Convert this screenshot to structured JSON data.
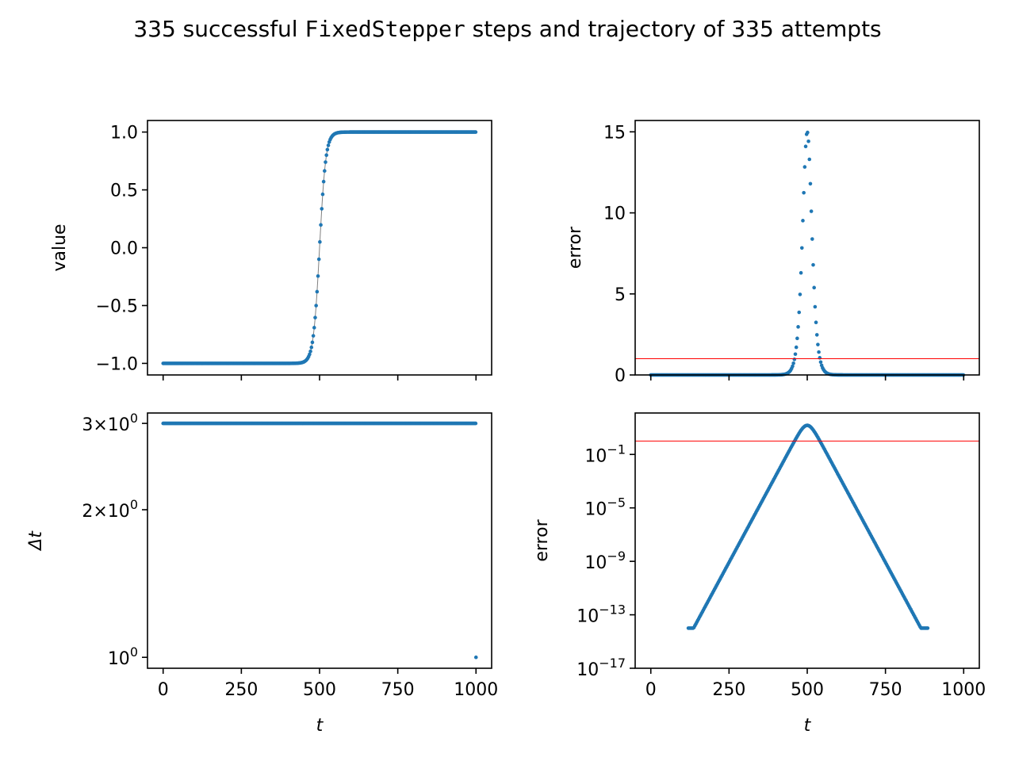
{
  "title": {
    "part1": "335 successful ",
    "part2": "FixedStepper",
    "part3": " steps and trajectory of 335 attempts"
  },
  "colors": {
    "series": "#1f77b4",
    "threshold": "#ff0000",
    "line": "#808080"
  },
  "chart_data": [
    {
      "id": "value",
      "type": "line",
      "xlim": [
        -50,
        1050
      ],
      "ylim": [
        -1.1,
        1.1
      ],
      "ylabel": "value",
      "xlabel": "",
      "yticks": [
        -1.0,
        -0.5,
        0.0,
        0.5,
        1.0
      ],
      "ytick_labels": [
        "−1.0",
        "−0.5",
        "0.0",
        "0.5",
        "1.0"
      ],
      "xticks": [
        0,
        250,
        500,
        750,
        1000
      ],
      "xtick_labels": [],
      "series": [
        {
          "formula": "tanh((t-500)/20)",
          "t_start": 0,
          "t_step": 3,
          "t_end": 1000
        }
      ]
    },
    {
      "id": "error-linear",
      "type": "scatter",
      "xlim": [
        -50,
        1050
      ],
      "ylim": [
        0,
        15.7
      ],
      "ylabel": "error",
      "xlabel": "",
      "yticks": [
        0,
        5,
        10,
        15
      ],
      "ytick_labels": [
        "0",
        "5",
        "10",
        "15"
      ],
      "xticks": [
        0,
        250,
        500,
        750,
        1000
      ],
      "xtick_labels": [],
      "threshold": 1,
      "series": [
        {
          "formula": "15*sech2((t-500)/20)",
          "t_start": 0,
          "t_step": 3,
          "t_end": 1000
        }
      ]
    },
    {
      "id": "dt",
      "type": "scatter",
      "scale": "log",
      "xlim": [
        -50,
        1050
      ],
      "ylim": [
        0.95,
        3.15
      ],
      "ylabel": "Δt",
      "xlabel": "t",
      "yticks": [
        1,
        2,
        3
      ],
      "ytick_labels": [
        "10",
        "2×10",
        "3×10"
      ],
      "ytick_exponent": "0",
      "xticks": [
        0,
        250,
        500,
        750,
        1000
      ],
      "xtick_labels": [
        "0",
        "250",
        "500",
        "750",
        "1000"
      ],
      "series": [
        {
          "value": 3,
          "t_start": 0,
          "t_step": 3,
          "t_end": 1000,
          "last_point": {
            "t": 1000,
            "value": 1
          }
        }
      ]
    },
    {
      "id": "error-log",
      "type": "scatter",
      "scale": "log",
      "xlim": [
        -50,
        1050
      ],
      "ylim_exp": [
        -17,
        2.1
      ],
      "ylabel": "error",
      "xlabel": "t",
      "ytick_exps": [
        -1,
        -5,
        -9,
        -13,
        -17
      ],
      "ytick_base": "10",
      "ytick_exp_labels": [
        "−1",
        "−5",
        "−9",
        "−13",
        "−17"
      ],
      "xticks": [
        0,
        250,
        500,
        750,
        1000
      ],
      "xtick_labels": [
        "0",
        "250",
        "500",
        "750",
        "1000"
      ],
      "threshold": 1,
      "series": [
        {
          "formula": "15*sech2((t-500)/20)",
          "floor": 1e-14,
          "t_start": 120,
          "t_step": 3,
          "t_end": 885
        }
      ]
    }
  ]
}
